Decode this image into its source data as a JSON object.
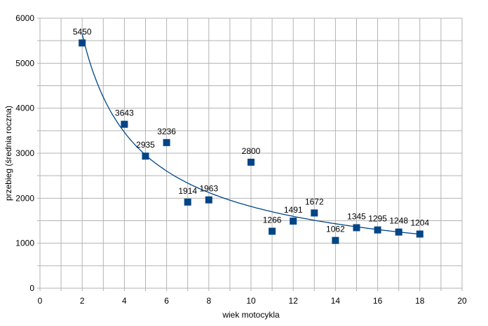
{
  "chart_data": {
    "type": "scatter",
    "title": "",
    "xlabel": "wiek motocykla",
    "ylabel": "przebieg (średnia roczna)",
    "xlim": [
      0,
      20
    ],
    "ylim": [
      0,
      6000
    ],
    "x_ticks": [
      0,
      2,
      4,
      6,
      8,
      10,
      12,
      14,
      16,
      18,
      20
    ],
    "y_ticks": [
      0,
      1000,
      2000,
      3000,
      4000,
      5000,
      6000
    ],
    "x_minor_grid_step": 1,
    "y_minor_grid_step": 500,
    "grid": true,
    "series": [
      {
        "name": "przebieg",
        "color": "#004586",
        "marker": "square",
        "points": [
          {
            "x": 2,
            "y": 5450
          },
          {
            "x": 4,
            "y": 3643
          },
          {
            "x": 5,
            "y": 2935
          },
          {
            "x": 6,
            "y": 3236
          },
          {
            "x": 7,
            "y": 1914
          },
          {
            "x": 8,
            "y": 1963
          },
          {
            "x": 10,
            "y": 2800
          },
          {
            "x": 11,
            "y": 1266
          },
          {
            "x": 12,
            "y": 1491
          },
          {
            "x": 13,
            "y": 1672
          },
          {
            "x": 14,
            "y": 1062
          },
          {
            "x": 15,
            "y": 1345
          },
          {
            "x": 16,
            "y": 1295
          },
          {
            "x": 17,
            "y": 1248
          },
          {
            "x": 18,
            "y": 1204
          }
        ]
      }
    ],
    "trendline": {
      "type": "power",
      "a": 9210,
      "b": -0.705,
      "x_range": [
        2,
        18
      ],
      "color": "#004586"
    }
  }
}
